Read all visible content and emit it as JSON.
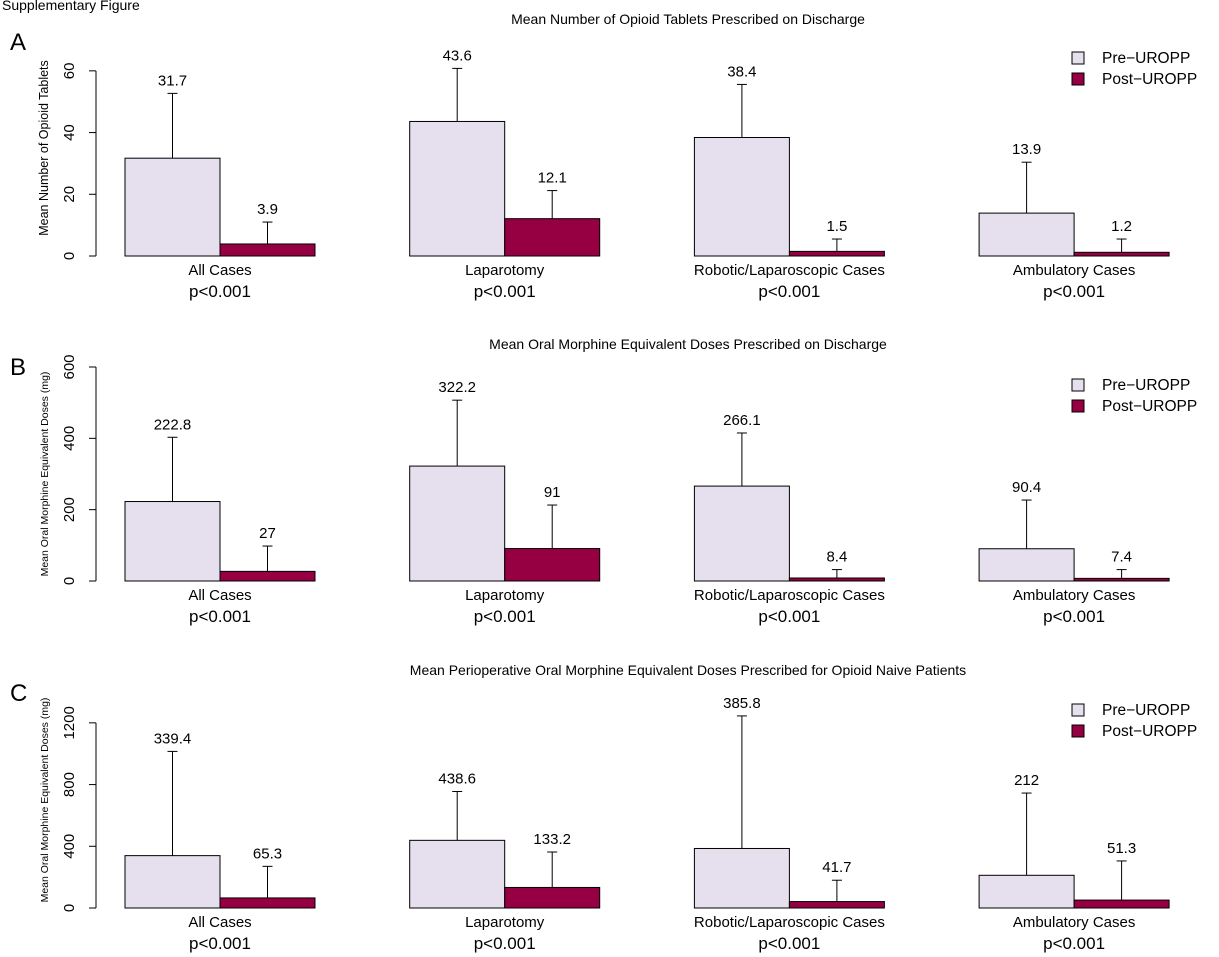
{
  "header_note": "Supplementary Figure",
  "chart_data": [
    {
      "type": "bar",
      "panel": "A",
      "title": "Mean Number of Opioid Tablets Prescribed on Discharge",
      "ylabel": "Mean Number of Opioid Tablets",
      "xlabel": "",
      "ylim": [
        0,
        70
      ],
      "yticks": [
        0,
        20,
        40,
        60
      ],
      "categories": [
        "All Cases",
        "Laparotomy",
        "Robotic/Laparoscopic Cases",
        "Ambulatory Cases"
      ],
      "pvalues": [
        "p<0.001",
        "p<0.001",
        "p<0.001",
        "p<0.001"
      ],
      "series": [
        {
          "name": "Pre−UROPP",
          "color": "#e6e0ee",
          "values": [
            31.7,
            43.6,
            38.4,
            13.9
          ],
          "labels": [
            "31.7",
            "43.6",
            "38.4",
            "13.9"
          ],
          "error_upper": [
            52.7,
            60.8,
            55.6,
            30.4
          ]
        },
        {
          "name": "Post−UROPP",
          "color": "#960042",
          "values": [
            3.9,
            12.1,
            1.5,
            1.2
          ],
          "labels": [
            "3.9",
            "12.1",
            "1.5",
            "1.2"
          ],
          "error_upper": [
            11.0,
            21.2,
            5.5,
            5.5
          ]
        }
      ],
      "grid": false,
      "legend": "top-right"
    },
    {
      "type": "bar",
      "panel": "B",
      "title": "Mean Oral Morphine Equivalent Doses Prescribed on Discharge",
      "ylabel": "Mean Oral Morphine Equivalent Doses (mg)",
      "xlabel": "",
      "ylim": [
        0,
        600
      ],
      "yticks": [
        0,
        200,
        400,
        600
      ],
      "categories": [
        "All Cases",
        "Laparotomy",
        "Robotic/Laparoscopic Cases",
        "Ambulatory Cases"
      ],
      "pvalues": [
        "p<0.001",
        "p<0.001",
        "p<0.001",
        "p<0.001"
      ],
      "series": [
        {
          "name": "Pre−UROPP",
          "color": "#e6e0ee",
          "values": [
            222.8,
            322.2,
            266.1,
            90.4
          ],
          "labels": [
            "222.8",
            "322.2",
            "266.1",
            "90.4"
          ],
          "error_upper": [
            403,
            507,
            415,
            227
          ]
        },
        {
          "name": "Post−UROPP",
          "color": "#960042",
          "values": [
            27,
            91,
            8.4,
            7.4
          ],
          "labels": [
            "27",
            "91",
            "8.4",
            "7.4"
          ],
          "error_upper": [
            98,
            213,
            32,
            32
          ]
        }
      ],
      "grid": false,
      "legend": "top-right"
    },
    {
      "type": "bar",
      "panel": "C",
      "title": "Mean Perioperative Oral Morphine Equivalent Doses Prescribed for Opioid Naive Patients",
      "ylabel": "Mean Oral Morphine Equivalent Doses (mg)",
      "xlabel": "",
      "ylim": [
        0,
        1400
      ],
      "yticks": [
        0,
        400,
        800,
        1200
      ],
      "categories": [
        "All Cases",
        "Laparotomy",
        "Robotic/Laparoscopic Cases",
        "Ambulatory Cases"
      ],
      "pvalues": [
        "p<0.001",
        "p<0.001",
        "p<0.001",
        "p<0.001"
      ],
      "series": [
        {
          "name": "Pre−UROPP",
          "color": "#e6e0ee",
          "values": [
            339.4,
            438.6,
            385.8,
            212
          ],
          "labels": [
            "339.4",
            "438.6",
            "385.8",
            "212"
          ],
          "error_upper": [
            1015,
            755,
            1245,
            745
          ]
        },
        {
          "name": "Post−UROPP",
          "color": "#960042",
          "values": [
            65.3,
            133.2,
            41.7,
            51.3
          ],
          "labels": [
            "65.3",
            "133.2",
            "41.7",
            "51.3"
          ],
          "error_upper": [
            270,
            363,
            180,
            305
          ]
        }
      ],
      "grid": false,
      "legend": "top-right"
    }
  ]
}
